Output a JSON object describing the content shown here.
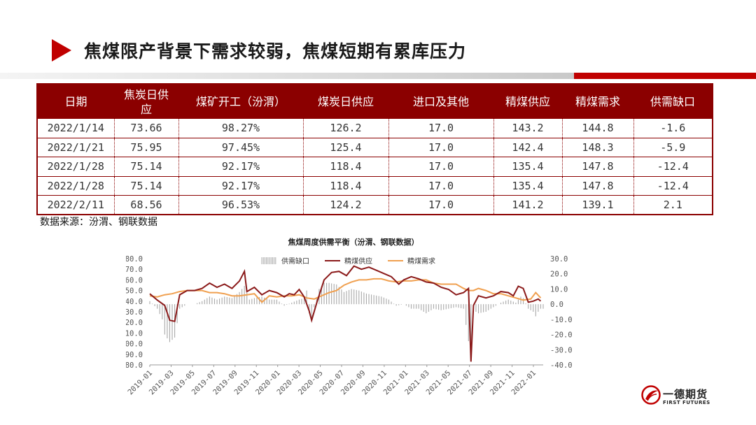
{
  "page": {
    "title": "焦煤限产背景下需求较弱，焦煤短期有累库压力",
    "source_note": "数据来源：汾渭、钢联数据"
  },
  "table": {
    "headers": [
      "日期",
      "焦炭日供\n应",
      "煤矿开工（汾渭）",
      "煤炭日供应",
      "进口及其他",
      "精煤供应",
      "精煤需求",
      "供需缺口"
    ],
    "rows": [
      [
        "2022/1/14",
        "73.66",
        "98.27%",
        "126.2",
        "17.0",
        "143.2",
        "144.8",
        "-1.6"
      ],
      [
        "2022/1/21",
        "75.95",
        "97.45%",
        "125.4",
        "17.0",
        "142.4",
        "148.3",
        "-5.9"
      ],
      [
        "2022/1/28",
        "75.14",
        "92.17%",
        "118.4",
        "17.0",
        "135.4",
        "147.8",
        "-12.4"
      ],
      [
        "2022/1/28",
        "75.14",
        "92.17%",
        "118.4",
        "17.0",
        "135.4",
        "147.8",
        "-12.4"
      ],
      [
        "2022/2/11",
        "68.56",
        "96.53%",
        "124.2",
        "17.0",
        "141.2",
        "139.1",
        "2.1"
      ]
    ]
  },
  "chart_data": {
    "type": "line",
    "title": "焦煤周度供需平衡（汾渭、钢联数据）",
    "legend": [
      "供需缺口",
      "精煤供应",
      "精煤需求"
    ],
    "legend_position": "top",
    "x_tick_labels": [
      "2019-01",
      "2019-03",
      "2019-05",
      "2019-07",
      "2019-09",
      "2019-11",
      "2020-01",
      "2020-03",
      "2020-05",
      "2020-07",
      "2020-09",
      "2020-11",
      "2021-01",
      "2021-03",
      "2021-05",
      "2021-07",
      "2021-09",
      "2021-11",
      "2022-01"
    ],
    "y_left_ticks": [
      "80.0",
      "90.0",
      "100.0",
      "110.0",
      "120.0",
      "130.0",
      "140.0",
      "150.0",
      "160.0",
      "170.0",
      "180.0"
    ],
    "y_right_ticks": [
      "-40.0",
      "-30.0",
      "-20.0",
      "-10.0",
      "0.0",
      "10.0",
      "20.0",
      "30.0"
    ],
    "y_left_range": [
      80,
      180
    ],
    "y_right_range": [
      -40,
      30
    ],
    "x_range": [
      0,
      158
    ],
    "grid": false,
    "colors": {
      "gap": "#a8a8a8",
      "supply": "#8b1a1a",
      "demand": "#f0a050"
    },
    "supply_points": [
      [
        0,
        147
      ],
      [
        3,
        141
      ],
      [
        6,
        136
      ],
      [
        8,
        122
      ],
      [
        10,
        121
      ],
      [
        12,
        146
      ],
      [
        15,
        150
      ],
      [
        18,
        150
      ],
      [
        21,
        152
      ],
      [
        24,
        157
      ],
      [
        27,
        153
      ],
      [
        30,
        156
      ],
      [
        33,
        152
      ],
      [
        36,
        159
      ],
      [
        38,
        168
      ],
      [
        39,
        149
      ],
      [
        42,
        153
      ],
      [
        45,
        146
      ],
      [
        48,
        150
      ],
      [
        51,
        148
      ],
      [
        54,
        144
      ],
      [
        56,
        147
      ],
      [
        58,
        146
      ],
      [
        60,
        151
      ],
      [
        62,
        144
      ],
      [
        64,
        131
      ],
      [
        65,
        122
      ],
      [
        67,
        138
      ],
      [
        70,
        160
      ],
      [
        73,
        167
      ],
      [
        76,
        168
      ],
      [
        79,
        164
      ],
      [
        82,
        173
      ],
      [
        85,
        170
      ],
      [
        88,
        172
      ],
      [
        91,
        169
      ],
      [
        94,
        166
      ],
      [
        97,
        163
      ],
      [
        100,
        156
      ],
      [
        102,
        160
      ],
      [
        105,
        163
      ],
      [
        108,
        161
      ],
      [
        111,
        158
      ],
      [
        114,
        157
      ],
      [
        117,
        153
      ],
      [
        120,
        151
      ],
      [
        123,
        146
      ],
      [
        126,
        148
      ],
      [
        128,
        152
      ],
      [
        129,
        83
      ],
      [
        130,
        136
      ],
      [
        132,
        145
      ],
      [
        135,
        143
      ],
      [
        138,
        145
      ],
      [
        141,
        149
      ],
      [
        144,
        148
      ],
      [
        146,
        145
      ],
      [
        148,
        154
      ],
      [
        150,
        152
      ],
      [
        152,
        139
      ],
      [
        154,
        140
      ],
      [
        156,
        142
      ],
      [
        157,
        140
      ]
    ],
    "demand_points": [
      [
        0,
        145
      ],
      [
        3,
        144
      ],
      [
        6,
        146
      ],
      [
        9,
        147
      ],
      [
        12,
        149
      ],
      [
        15,
        150
      ],
      [
        18,
        150
      ],
      [
        21,
        150
      ],
      [
        24,
        148
      ],
      [
        27,
        148
      ],
      [
        30,
        147
      ],
      [
        33,
        145
      ],
      [
        36,
        145
      ],
      [
        39,
        146
      ],
      [
        42,
        147
      ],
      [
        45,
        139
      ],
      [
        48,
        145
      ],
      [
        51,
        144
      ],
      [
        54,
        145
      ],
      [
        57,
        145
      ],
      [
        60,
        146
      ],
      [
        63,
        143
      ],
      [
        66,
        142
      ],
      [
        69,
        145
      ],
      [
        72,
        148
      ],
      [
        75,
        150
      ],
      [
        78,
        155
      ],
      [
        81,
        158
      ],
      [
        84,
        160
      ],
      [
        87,
        160
      ],
      [
        90,
        161
      ],
      [
        93,
        161
      ],
      [
        96,
        159
      ],
      [
        99,
        158
      ],
      [
        102,
        159
      ],
      [
        105,
        159
      ],
      [
        108,
        160
      ],
      [
        111,
        160
      ],
      [
        114,
        157
      ],
      [
        117,
        156
      ],
      [
        120,
        156
      ],
      [
        123,
        156
      ],
      [
        126,
        152
      ],
      [
        128,
        150
      ],
      [
        130,
        150
      ],
      [
        132,
        152
      ],
      [
        135,
        150
      ],
      [
        138,
        147
      ],
      [
        141,
        147
      ],
      [
        144,
        145
      ],
      [
        147,
        143
      ],
      [
        150,
        141
      ],
      [
        153,
        142
      ],
      [
        155,
        148
      ],
      [
        157,
        143
      ]
    ],
    "gap_points": [
      [
        0,
        2
      ],
      [
        3,
        -3
      ],
      [
        5,
        -10
      ],
      [
        6,
        -20
      ],
      [
        8,
        -25
      ],
      [
        10,
        -22
      ],
      [
        12,
        -3
      ],
      [
        15,
        0
      ],
      [
        18,
        0
      ],
      [
        21,
        2
      ],
      [
        24,
        5
      ],
      [
        27,
        3
      ],
      [
        30,
        5
      ],
      [
        33,
        4
      ],
      [
        36,
        8
      ],
      [
        38,
        12
      ],
      [
        40,
        3
      ],
      [
        42,
        4
      ],
      [
        45,
        5
      ],
      [
        48,
        3
      ],
      [
        51,
        3
      ],
      [
        54,
        -1
      ],
      [
        57,
        1
      ],
      [
        60,
        3
      ],
      [
        62,
        4
      ],
      [
        63,
        9
      ],
      [
        64,
        -6
      ],
      [
        65,
        -9
      ],
      [
        66,
        -2
      ],
      [
        68,
        10
      ],
      [
        70,
        14
      ],
      [
        72,
        14
      ],
      [
        75,
        13
      ],
      [
        78,
        8
      ],
      [
        81,
        10
      ],
      [
        84,
        9
      ],
      [
        87,
        7
      ],
      [
        90,
        6
      ],
      [
        93,
        5
      ],
      [
        96,
        3
      ],
      [
        99,
        -1
      ],
      [
        102,
        0
      ],
      [
        105,
        -3
      ],
      [
        108,
        -3
      ],
      [
        111,
        -6
      ],
      [
        114,
        -3
      ],
      [
        117,
        -4
      ],
      [
        120,
        -3
      ],
      [
        123,
        -2
      ],
      [
        126,
        -3
      ],
      [
        129,
        -35
      ],
      [
        130,
        -4
      ],
      [
        132,
        -6
      ],
      [
        135,
        -5
      ],
      [
        138,
        -2
      ],
      [
        141,
        1
      ],
      [
        144,
        3
      ],
      [
        147,
        1
      ],
      [
        149,
        5
      ],
      [
        150,
        4
      ],
      [
        152,
        -3
      ],
      [
        154,
        -5
      ],
      [
        155,
        -8
      ],
      [
        156,
        -5
      ],
      [
        157,
        -3
      ]
    ]
  },
  "logo": {
    "name": "一德期货",
    "sub": "FIRST FUTURES"
  }
}
